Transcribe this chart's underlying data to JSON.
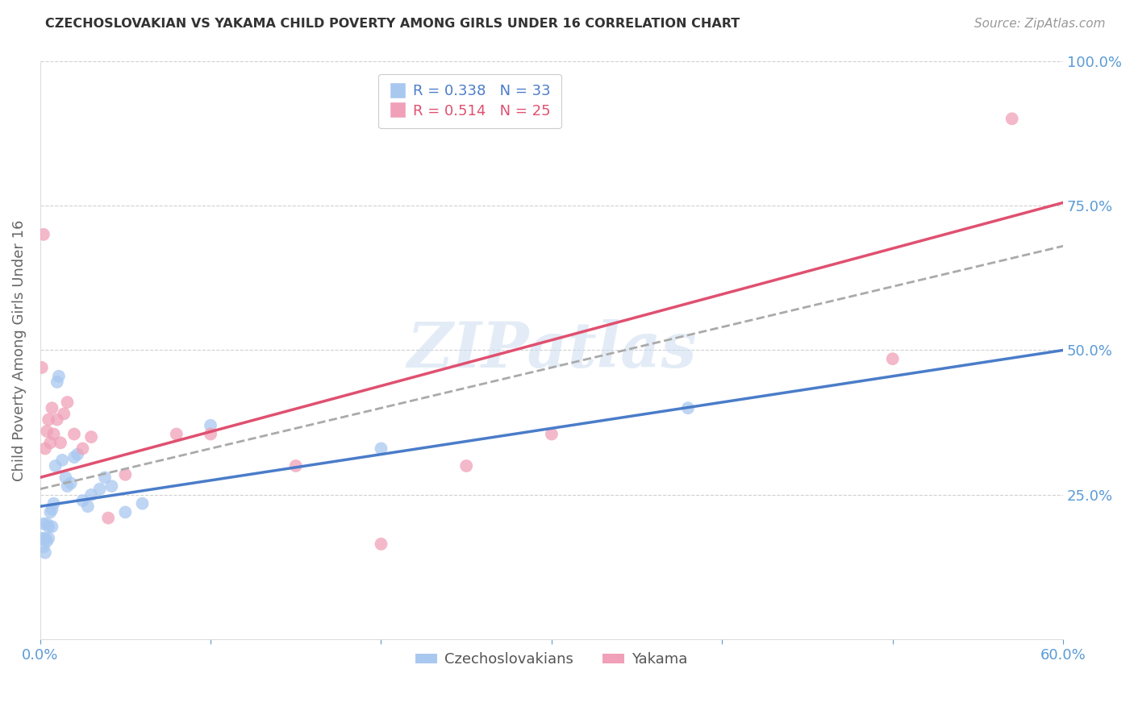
{
  "title": "CZECHOSLOVAKIAN VS YAKAMA CHILD POVERTY AMONG GIRLS UNDER 16 CORRELATION CHART",
  "source": "Source: ZipAtlas.com",
  "ylabel": "Child Poverty Among Girls Under 16",
  "xlim": [
    0.0,
    0.6
  ],
  "ylim": [
    0.0,
    1.0
  ],
  "yticks": [
    0.25,
    0.5,
    0.75,
    1.0
  ],
  "xticks": [
    0.0,
    0.1,
    0.2,
    0.3,
    0.4,
    0.5,
    0.6
  ],
  "blue_color": "#a8c8f0",
  "pink_color": "#f0a0b8",
  "blue_line_color": "#4a7cc9",
  "pink_line_color": "#e05070",
  "dashed_line_color": "#aaaaaa",
  "background_color": "#ffffff",
  "grid_color": "#d0d0d0",
  "axis_label_color": "#5b9bd5",
  "title_color": "#333333",
  "blue_R": 0.338,
  "blue_N": 33,
  "pink_R": 0.514,
  "pink_N": 25,
  "blue_line_x0": 0.0,
  "blue_line_y0": 0.23,
  "blue_line_x1": 0.6,
  "blue_line_y1": 0.5,
  "pink_line_x0": 0.0,
  "pink_line_y0": 0.28,
  "pink_line_x1": 0.6,
  "pink_line_y1": 0.755,
  "dash_line_x0": 0.0,
  "dash_line_y0": 0.26,
  "dash_line_x1": 0.6,
  "dash_line_y1": 0.68,
  "blue_scatter_x": [
    0.001,
    0.002,
    0.002,
    0.003,
    0.003,
    0.004,
    0.004,
    0.005,
    0.005,
    0.006,
    0.007,
    0.007,
    0.008,
    0.009,
    0.01,
    0.011,
    0.013,
    0.015,
    0.016,
    0.018,
    0.02,
    0.022,
    0.025,
    0.028,
    0.03,
    0.035,
    0.038,
    0.042,
    0.05,
    0.06,
    0.1,
    0.2,
    0.38
  ],
  "blue_scatter_y": [
    0.175,
    0.16,
    0.2,
    0.15,
    0.175,
    0.17,
    0.2,
    0.175,
    0.195,
    0.22,
    0.225,
    0.195,
    0.235,
    0.3,
    0.445,
    0.455,
    0.31,
    0.28,
    0.265,
    0.27,
    0.315,
    0.32,
    0.24,
    0.23,
    0.25,
    0.26,
    0.28,
    0.265,
    0.22,
    0.235,
    0.37,
    0.33,
    0.4
  ],
  "pink_scatter_x": [
    0.001,
    0.002,
    0.003,
    0.004,
    0.005,
    0.006,
    0.007,
    0.008,
    0.01,
    0.012,
    0.014,
    0.016,
    0.02,
    0.025,
    0.03,
    0.04,
    0.05,
    0.08,
    0.1,
    0.15,
    0.2,
    0.25,
    0.3,
    0.5,
    0.57
  ],
  "pink_scatter_y": [
    0.47,
    0.7,
    0.33,
    0.36,
    0.38,
    0.34,
    0.4,
    0.355,
    0.38,
    0.34,
    0.39,
    0.41,
    0.355,
    0.33,
    0.35,
    0.21,
    0.285,
    0.355,
    0.355,
    0.3,
    0.165,
    0.3,
    0.355,
    0.485,
    0.9
  ],
  "watermark": "ZIPatlas"
}
